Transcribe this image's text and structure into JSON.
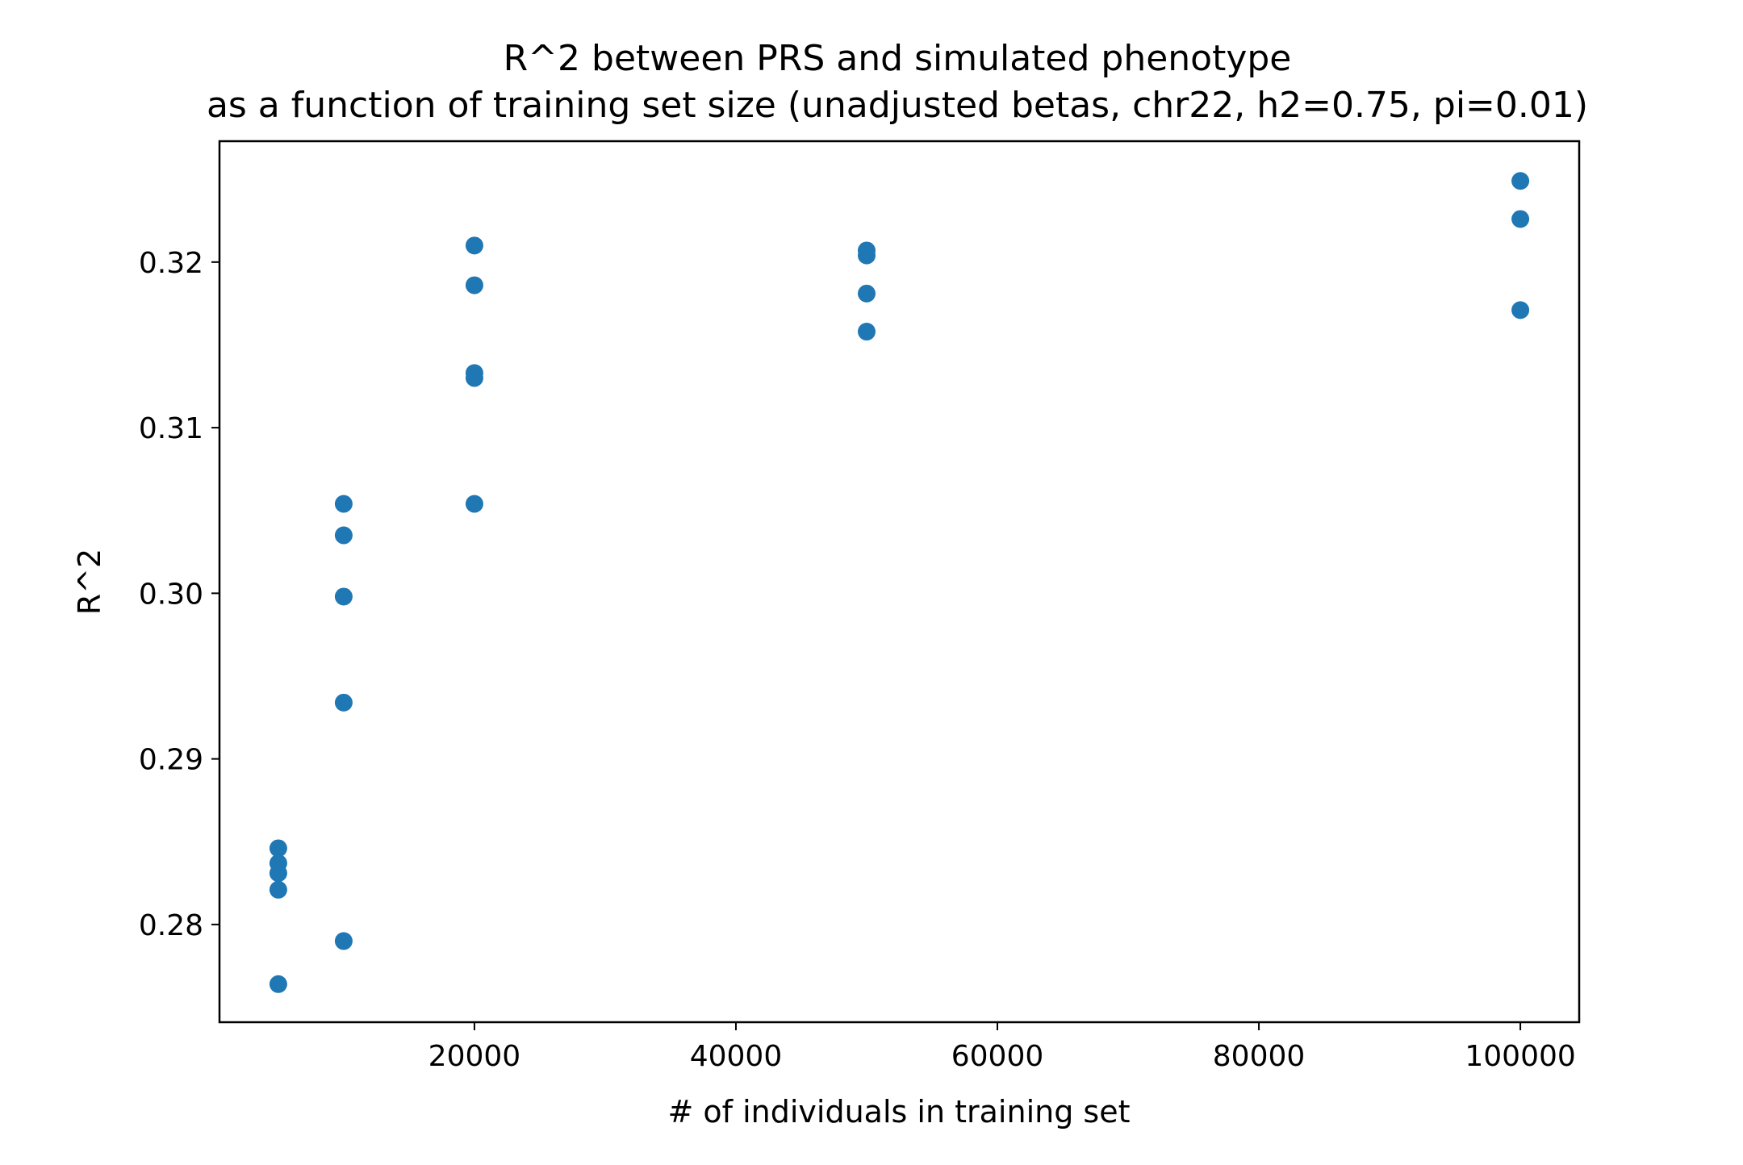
{
  "chart_data": {
    "type": "scatter",
    "title": "R^2 between PRS and simulated phenotype",
    "subtitle": "as a function of training set size (unadjusted betas, chr22, h2=0.75, pi=0.01)",
    "xlabel": "# of individuals in training set",
    "ylabel": "R^2",
    "xlim": [
      500,
      104500
    ],
    "ylim": [
      0.2741,
      0.3273
    ],
    "x_ticks": [
      20000,
      40000,
      60000,
      80000,
      100000
    ],
    "x_tick_labels": [
      "20000",
      "40000",
      "60000",
      "80000",
      "100000"
    ],
    "y_ticks": [
      0.28,
      0.29,
      0.3,
      0.31,
      0.32
    ],
    "y_tick_labels": [
      "0.28",
      "0.29",
      "0.30",
      "0.31",
      "0.32"
    ],
    "grid": false,
    "marker_color": "#1f77b4",
    "series": [
      {
        "points": [
          {
            "x": 5000,
            "y": 0.2846
          },
          {
            "x": 5000,
            "y": 0.2837
          },
          {
            "x": 5000,
            "y": 0.2831
          },
          {
            "x": 5000,
            "y": 0.2821
          },
          {
            "x": 5000,
            "y": 0.2764
          },
          {
            "x": 10000,
            "y": 0.3054
          },
          {
            "x": 10000,
            "y": 0.3035
          },
          {
            "x": 10000,
            "y": 0.2998
          },
          {
            "x": 10000,
            "y": 0.2934
          },
          {
            "x": 10000,
            "y": 0.279
          },
          {
            "x": 20000,
            "y": 0.321
          },
          {
            "x": 20000,
            "y": 0.3186
          },
          {
            "x": 20000,
            "y": 0.3133
          },
          {
            "x": 20000,
            "y": 0.313
          },
          {
            "x": 20000,
            "y": 0.3054
          },
          {
            "x": 50000,
            "y": 0.3207
          },
          {
            "x": 50000,
            "y": 0.3204
          },
          {
            "x": 50000,
            "y": 0.3181
          },
          {
            "x": 50000,
            "y": 0.3158
          },
          {
            "x": 100000,
            "y": 0.3249
          },
          {
            "x": 100000,
            "y": 0.3226
          },
          {
            "x": 100000,
            "y": 0.3171
          }
        ]
      }
    ]
  }
}
